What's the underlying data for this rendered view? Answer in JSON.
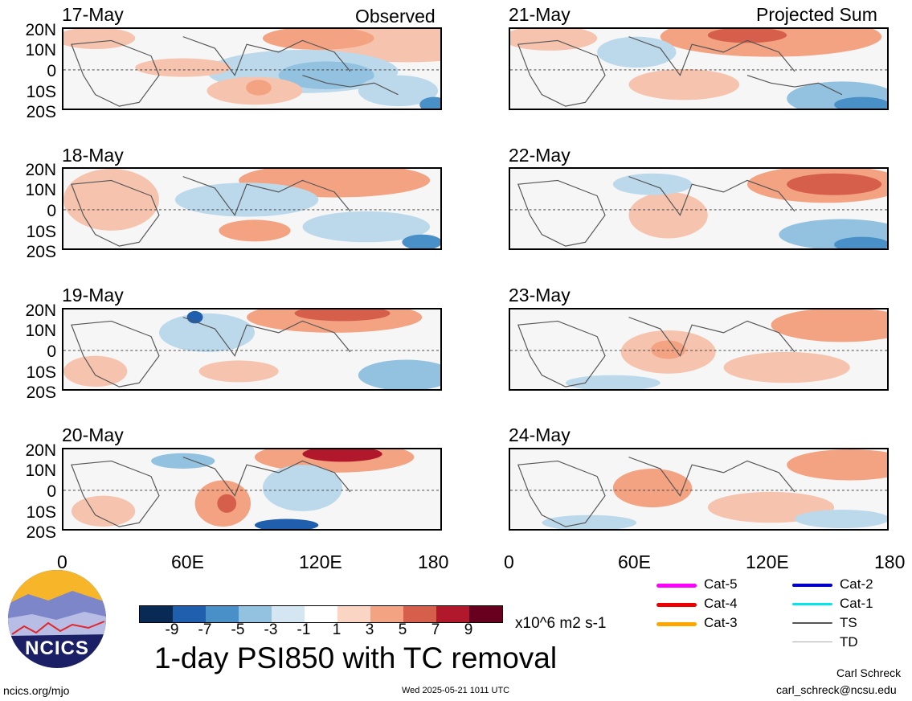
{
  "panels_left": [
    {
      "date": "17-May",
      "tag": "Observed"
    },
    {
      "date": "18-May",
      "tag": ""
    },
    {
      "date": "19-May",
      "tag": ""
    },
    {
      "date": "20-May",
      "tag": ""
    }
  ],
  "panels_right": [
    {
      "date": "21-May",
      "tag": "Projected Sum"
    },
    {
      "date": "22-May",
      "tag": ""
    },
    {
      "date": "23-May",
      "tag": ""
    },
    {
      "date": "24-May",
      "tag": ""
    }
  ],
  "lat_labels": [
    "20N",
    "10N",
    "0",
    "10S",
    "20S"
  ],
  "lon_labels": [
    "0",
    "60E",
    "120E",
    "180"
  ],
  "colorbar": {
    "ticks": [
      "-9",
      "-7",
      "-5",
      "-3",
      "-1",
      "1",
      "3",
      "5",
      "7",
      "9"
    ],
    "colors": [
      "#0a2a56",
      "#1f5fae",
      "#4a90c8",
      "#93c2e0",
      "#d3e6f2",
      "#ffffff",
      "#fbd5c3",
      "#f3a282",
      "#d65f4c",
      "#b2182b",
      "#67001f"
    ],
    "units": "x10^6 m2 s-1"
  },
  "title": "1-day PSI850 with TC removal",
  "footer": {
    "left": "ncics.org/mjo",
    "center": "Wed 2025-05-21 1011 UTC",
    "author": "Carl Schreck",
    "email": "carl_schreck@ncsu.edu"
  },
  "logo_text": "NCICS",
  "tc_legend": [
    {
      "label": "Cat-5",
      "color": "#ff00ff"
    },
    {
      "label": "Cat-4",
      "color": "#ee0000"
    },
    {
      "label": "Cat-3",
      "color": "#ffa500"
    },
    {
      "label": "Cat-2",
      "color": "#0000cc"
    },
    {
      "label": "Cat-1",
      "color": "#00e5ee"
    },
    {
      "label": "TS",
      "color": "#555555"
    },
    {
      "label": "TD",
      "color": "#aaaaaa"
    }
  ]
}
